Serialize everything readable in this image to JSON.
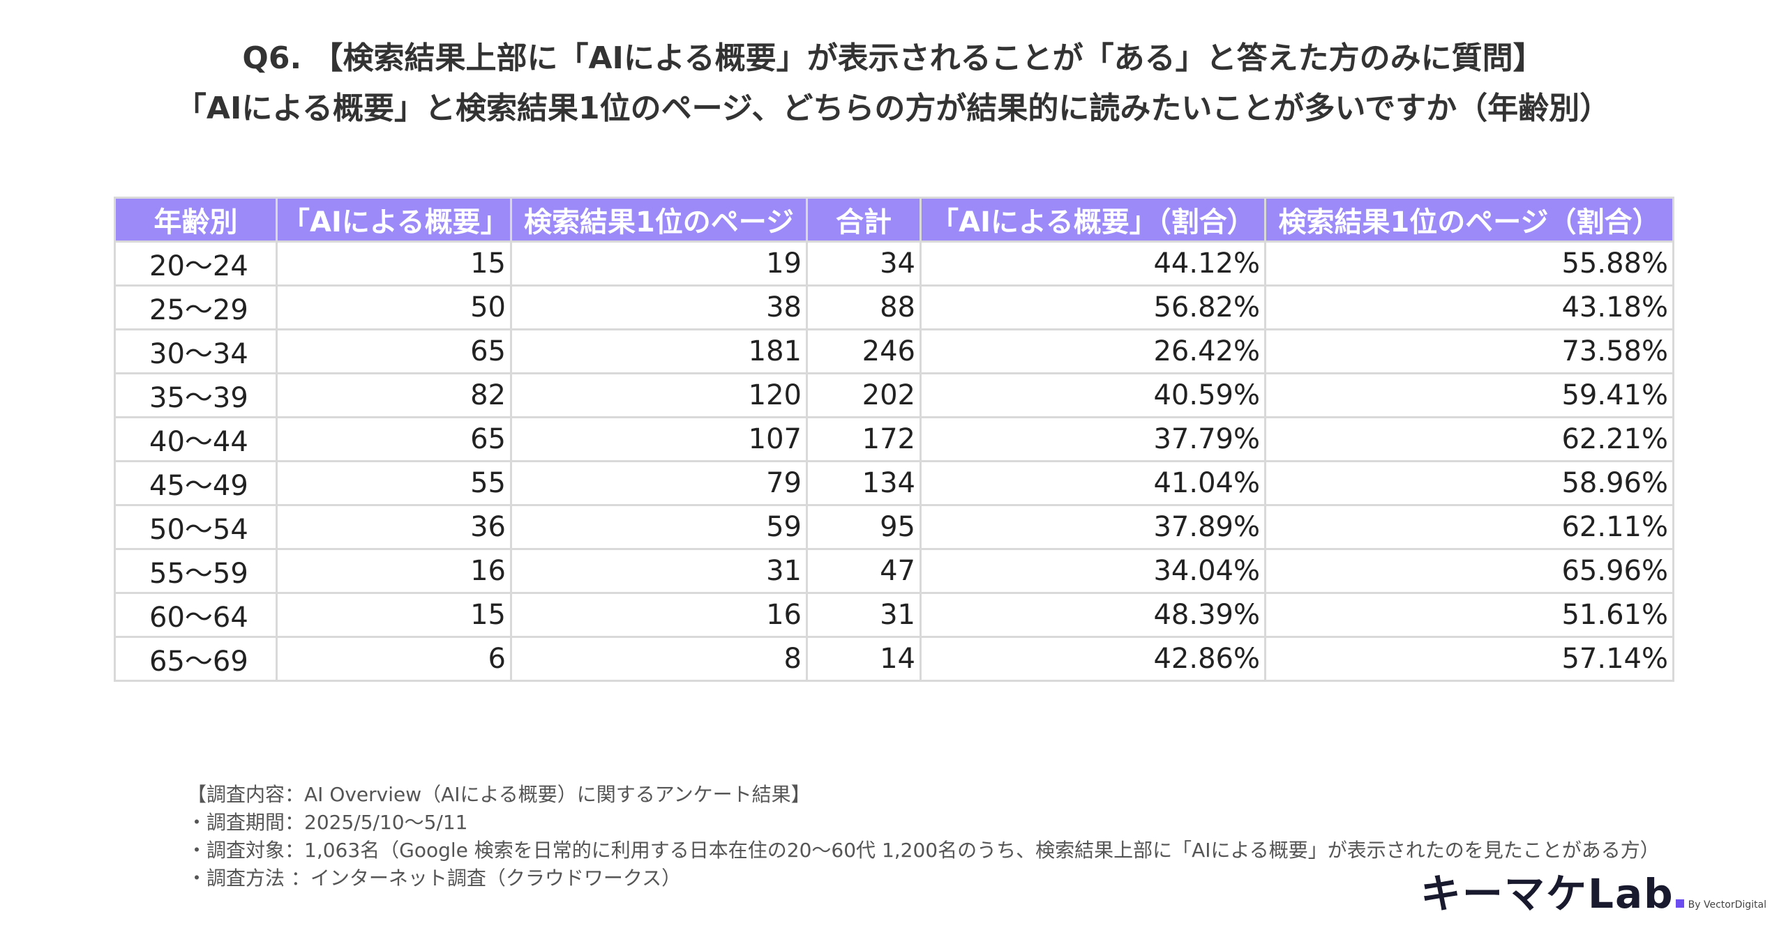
{
  "title": {
    "line1": "Q6. 【検索結果上部に「AIによる概要」が表示されることが「ある」と答えた方のみに質問】",
    "line2": "「AIによる概要」と検索結果1位のページ、どちらの方が結果的に読みたいことが多いですか（年齢別）"
  },
  "chart_data": {
    "type": "table",
    "columns": [
      "年齢別",
      "「AIによる概要」",
      "検索結果1位のページ",
      "合計",
      "「AIによる概要」（割合）",
      "検索結果1位のページ（割合）"
    ],
    "rows": [
      [
        "20〜24",
        "15",
        "19",
        "34",
        "44.12%",
        "55.88%"
      ],
      [
        "25〜29",
        "50",
        "38",
        "88",
        "56.82%",
        "43.18%"
      ],
      [
        "30〜34",
        "65",
        "181",
        "246",
        "26.42%",
        "73.58%"
      ],
      [
        "35〜39",
        "82",
        "120",
        "202",
        "40.59%",
        "59.41%"
      ],
      [
        "40〜44",
        "65",
        "107",
        "172",
        "37.79%",
        "62.21%"
      ],
      [
        "45〜49",
        "55",
        "79",
        "134",
        "41.04%",
        "58.96%"
      ],
      [
        "50〜54",
        "36",
        "59",
        "95",
        "37.89%",
        "62.11%"
      ],
      [
        "55〜59",
        "16",
        "31",
        "47",
        "34.04%",
        "65.96%"
      ],
      [
        "60〜64",
        "15",
        "16",
        "31",
        "48.39%",
        "51.61%"
      ],
      [
        "65〜69",
        "6",
        "8",
        "14",
        "42.86%",
        "57.14%"
      ]
    ]
  },
  "notes": [
    "【調査内容：AI Overview（AIによる概要）に関するアンケート結果】",
    "・調査期間：2025/5/10〜5/11",
    "・調査対象：1,063名（Google 検索を日常的に利用する日本在住の20〜60代 1,200名のうち、検索結果上部に「AIによる概要」が表示されたのを見たことがある方）",
    "・調査方法 ：インターネット調査（クラウドワークス）"
  ],
  "logo": {
    "main": "キーマケLab",
    "by": "By VectorDigital"
  },
  "colors": {
    "header_bg": "#9b8af7",
    "border": "#d9d9d9",
    "accent": "#6b4df0"
  }
}
